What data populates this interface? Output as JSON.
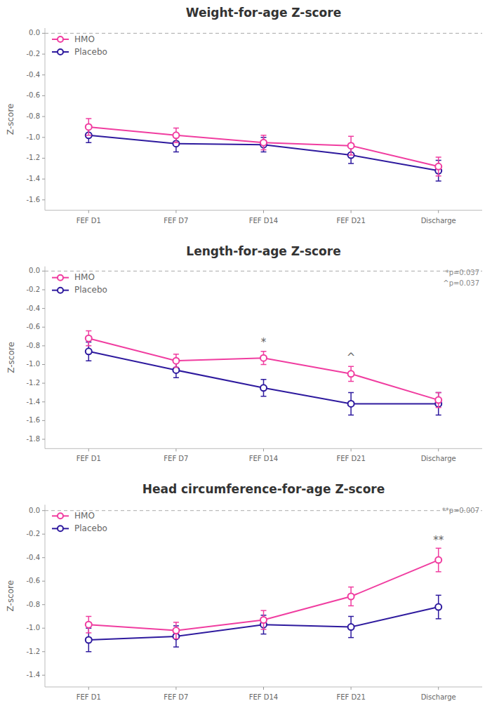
{
  "chart_data": [
    {
      "type": "line",
      "title": "Weight-for-age Z-score",
      "y_label": "Z-score",
      "categories": [
        "FEF D1",
        "FEF D7",
        "FEF D14",
        "FEF D21",
        "Discharge"
      ],
      "series": [
        {
          "name": "HMO",
          "color": "#F03DA0",
          "marker": "circle",
          "values": [
            -0.9,
            -0.98,
            -1.05,
            -1.08,
            -1.28
          ],
          "errors": [
            0.08,
            0.07,
            0.07,
            0.09,
            0.09
          ]
        },
        {
          "name": "Placebo",
          "color": "#2E1A9E",
          "marker": "circle",
          "values": [
            -0.98,
            -1.06,
            -1.07,
            -1.17,
            -1.32
          ],
          "errors": [
            0.07,
            0.08,
            0.07,
            0.08,
            0.1
          ]
        }
      ],
      "ylim": [
        -1.7,
        0.05
      ],
      "yticks": [
        {
          "value": 0.0,
          "label": "0.0"
        },
        -0.2,
        -0.4,
        -0.6,
        -0.8,
        {
          "value": -1.0,
          "label": "-1.0"
        },
        -1.2,
        -1.4,
        -1.6
      ],
      "annotations": [
        {
          "type": "hline",
          "y": 0,
          "line_style": "dashed"
        }
      ],
      "legend": "upper left",
      "grid": false
    },
    {
      "type": "line",
      "title": "Length-for-age Z-score",
      "y_label": "Z-score",
      "categories": [
        "FEF D1",
        "FEF D7",
        "FEF D14",
        "FEF D21",
        "Discharge"
      ],
      "series": [
        {
          "name": "HMO",
          "color": "#F03DA0",
          "marker": "circle",
          "values": [
            -0.72,
            -0.96,
            -0.93,
            -1.1,
            -1.38
          ],
          "errors": [
            0.08,
            0.07,
            0.07,
            0.08,
            0.08
          ]
        },
        {
          "name": "Placebo",
          "color": "#2E1A9E",
          "marker": "circle",
          "values": [
            -0.86,
            -1.06,
            -1.25,
            -1.42,
            -1.42
          ],
          "errors": [
            0.1,
            0.08,
            0.09,
            0.12,
            0.12
          ]
        }
      ],
      "ylim": [
        -1.9,
        0.05
      ],
      "yticks": [
        {
          "value": 0.0,
          "label": "0.0"
        },
        -0.2,
        -0.4,
        -0.6,
        -0.8,
        {
          "value": -1.0,
          "label": "-1.0"
        },
        -1.2,
        -1.4,
        -1.6,
        -1.8
      ],
      "annotations": [
        {
          "type": "hline",
          "y": 0,
          "line_style": "dashed"
        },
        {
          "text": "*",
          "x": "FEF D14",
          "y": -0.8
        },
        {
          "text": "^",
          "x": "FEF D21",
          "y": -0.96
        }
      ],
      "note": [
        "*p=0.037",
        "^p=0.037"
      ],
      "legend": "upper left",
      "grid": false
    },
    {
      "type": "line",
      "title": "Head circumference-for-age Z-score",
      "y_label": "Z-score",
      "categories": [
        "FEF D1",
        "FEF D7",
        "FEF D14",
        "FEF D21",
        "Discharge"
      ],
      "series": [
        {
          "name": "HMO",
          "color": "#F03DA0",
          "marker": "circle",
          "values": [
            -0.97,
            -1.02,
            -0.93,
            -0.73,
            -0.42
          ],
          "errors": [
            0.07,
            0.07,
            0.08,
            0.08,
            0.1
          ]
        },
        {
          "name": "Placebo",
          "color": "#2E1A9E",
          "marker": "circle",
          "values": [
            -1.1,
            -1.07,
            -0.97,
            -0.99,
            -0.82
          ],
          "errors": [
            0.1,
            0.09,
            0.08,
            0.09,
            0.1
          ]
        }
      ],
      "ylim": [
        -1.5,
        0.05
      ],
      "yticks": [
        {
          "value": 0.0,
          "label": "0.0"
        },
        -0.2,
        -0.4,
        -0.6,
        -0.8,
        {
          "value": -1.0,
          "label": "-1.0"
        },
        -1.2,
        -1.4
      ],
      "annotations": [
        {
          "type": "hline",
          "y": 0,
          "line_style": "dashed"
        },
        {
          "text": "**",
          "x": "Discharge",
          "y": -0.28
        }
      ],
      "note": [
        "**p=0.007"
      ],
      "legend": "upper left",
      "grid": false
    }
  ]
}
